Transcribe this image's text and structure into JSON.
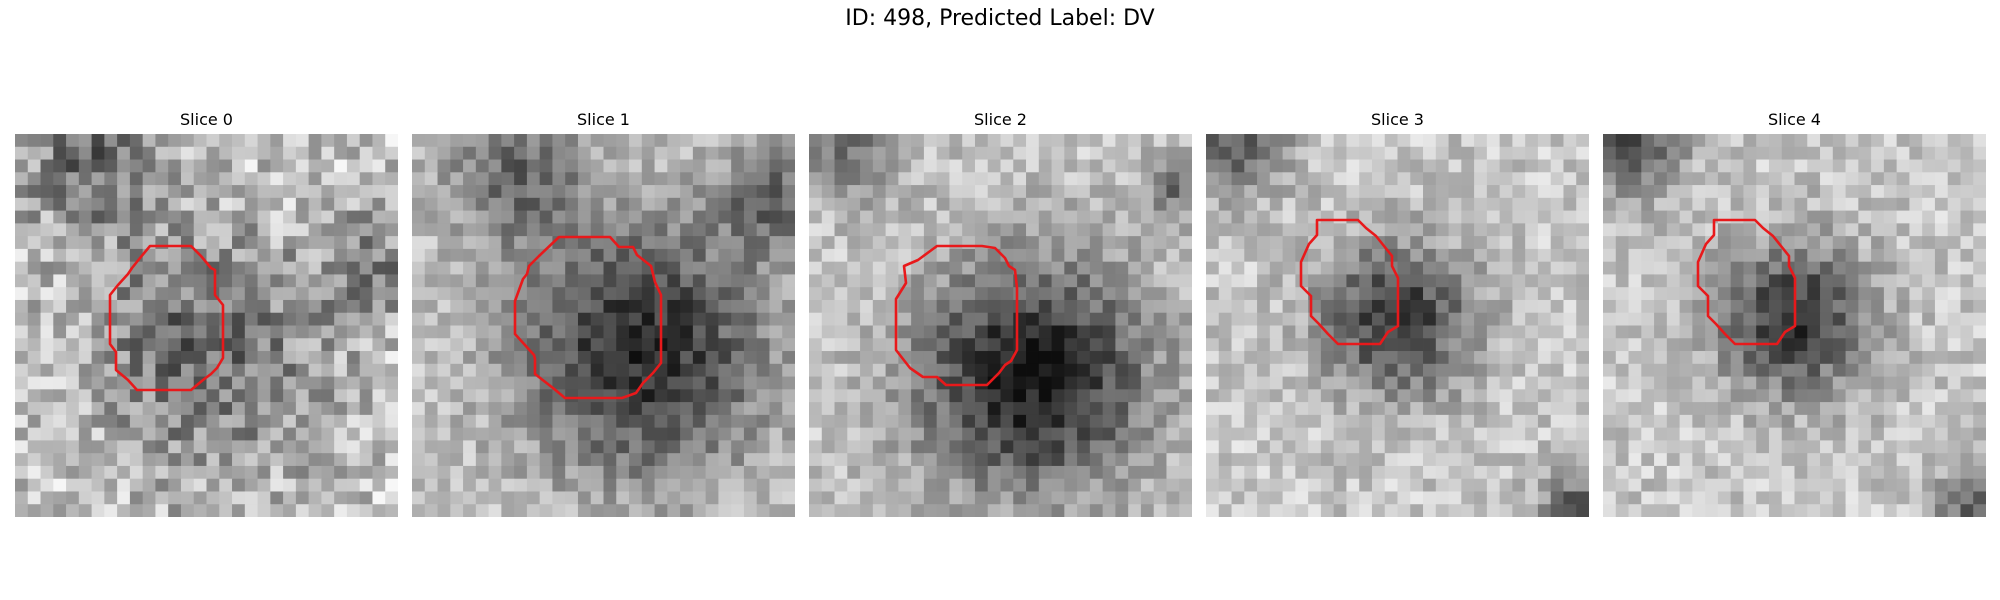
{
  "figure": {
    "title": "ID: 498, Predicted Label: DV"
  },
  "slices": [
    {
      "title": "Slice 0"
    },
    {
      "title": "Slice 1"
    },
    {
      "title": "Slice 2"
    },
    {
      "title": "Slice 3"
    },
    {
      "title": "Slice 4"
    }
  ],
  "colors": {
    "contour": "#e8191b"
  }
}
